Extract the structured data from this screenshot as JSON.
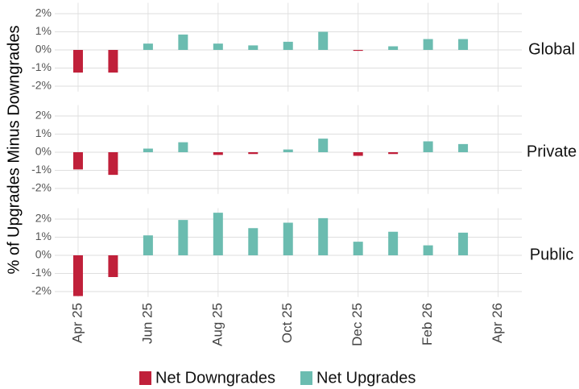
{
  "chart_data": {
    "type": "bar",
    "ylabel": "% of Upgrades Minus Downgrades",
    "x": [
      "2025-04",
      "2025-05",
      "2025-06",
      "2025-07",
      "2025-08",
      "2025-09",
      "2025-10",
      "2025-11",
      "2025-12",
      "2026-01",
      "2026-02",
      "2026-03"
    ],
    "xlim": [
      "2025-03",
      "2026-05"
    ],
    "xticks": [
      {
        "value": "2025-04",
        "label": "Apr 25"
      },
      {
        "value": "2025-06",
        "label": "Jun 25"
      },
      {
        "value": "2025-08",
        "label": "Aug 25"
      },
      {
        "value": "2025-10",
        "label": "Oct 25"
      },
      {
        "value": "2025-12",
        "label": "Dec 25"
      },
      {
        "value": "2026-02",
        "label": "Feb 26"
      },
      {
        "value": "2026-04",
        "label": "Apr 26"
      }
    ],
    "ylim": [
      -2.3,
      2.6
    ],
    "yticks": [
      {
        "value": -2,
        "label": "-2%"
      },
      {
        "value": -1,
        "label": "-1%"
      },
      {
        "value": 0,
        "label": "0%"
      },
      {
        "value": 1,
        "label": "1%"
      },
      {
        "value": 2,
        "label": "2%"
      }
    ],
    "grid": true,
    "legend_position": "bottom",
    "legend": [
      {
        "name": "Net Downgrades",
        "color": "#c0203a"
      },
      {
        "name": "Net Upgrades",
        "color": "#6bbcb0"
      }
    ],
    "facets": [
      {
        "label": "Global",
        "values": [
          -1.25,
          -1.25,
          0.35,
          0.85,
          0.35,
          0.25,
          0.45,
          1.0,
          -0.05,
          0.2,
          0.6,
          0.6
        ]
      },
      {
        "label": "Private",
        "values": [
          -0.95,
          -1.25,
          0.2,
          0.55,
          -0.15,
          -0.1,
          0.15,
          0.75,
          -0.2,
          -0.1,
          0.6,
          0.45
        ]
      },
      {
        "label": "Public",
        "values": [
          -2.25,
          -1.2,
          1.1,
          1.95,
          2.35,
          1.5,
          1.8,
          2.05,
          0.75,
          1.3,
          0.55,
          1.25
        ]
      }
    ]
  }
}
